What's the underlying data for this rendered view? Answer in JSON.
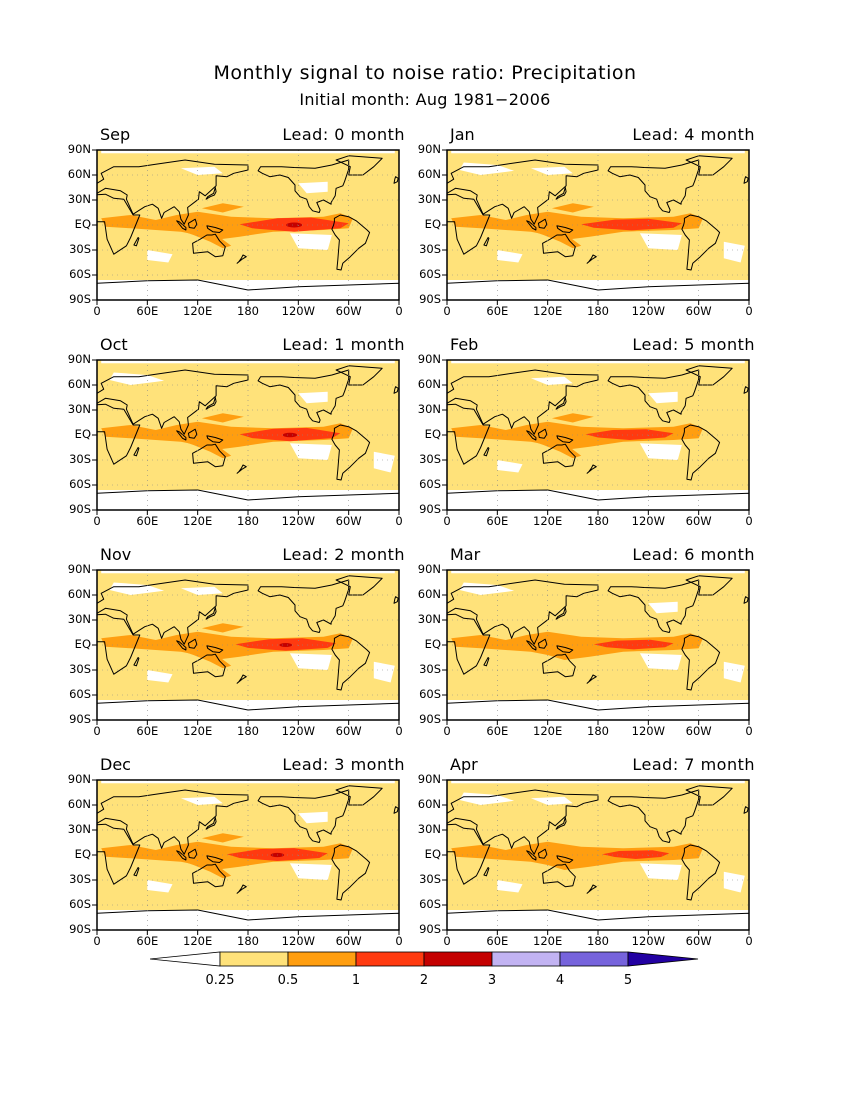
{
  "title": "Monthly signal to noise ratio: Precipitation",
  "subtitle": "Initial month: Aug 1981−2006",
  "lat_ticks": [
    "90N",
    "60N",
    "30N",
    "EQ",
    "30S",
    "60S",
    "90S"
  ],
  "lon_ticks": [
    "0",
    "60E",
    "120E",
    "180",
    "120W",
    "60W",
    "0"
  ],
  "panels": [
    {
      "month": "Sep",
      "lead": "Lead: 0 month",
      "core_strength": 1.0,
      "core_lon": [
        170,
        300
      ]
    },
    {
      "month": "Jan",
      "lead": "Lead: 4 month",
      "core_strength": 0.7,
      "core_lon": [
        160,
        280
      ]
    },
    {
      "month": "Oct",
      "lead": "Lead: 1 month",
      "core_strength": 0.9,
      "core_lon": [
        170,
        290
      ]
    },
    {
      "month": "Feb",
      "lead": "Lead: 5 month",
      "core_strength": 0.6,
      "core_lon": [
        165,
        270
      ]
    },
    {
      "month": "Nov",
      "lead": "Lead: 2 month",
      "core_strength": 0.8,
      "core_lon": [
        165,
        285
      ]
    },
    {
      "month": "Mar",
      "lead": "Lead: 6 month",
      "core_strength": 0.45,
      "core_lon": [
        175,
        270
      ]
    },
    {
      "month": "Dec",
      "lead": "Lead: 3 month",
      "core_strength": 0.85,
      "core_lon": [
        155,
        275
      ]
    },
    {
      "month": "Apr",
      "lead": "Lead: 7 month",
      "core_strength": 0.35,
      "core_lon": [
        185,
        265
      ]
    }
  ],
  "colorbar": {
    "labels": [
      "0.25",
      "0.5",
      "1",
      "2",
      "3",
      "4",
      "5"
    ],
    "colors": [
      "#ffffff",
      "#ffe27a",
      "#ff9e10",
      "#ff3a10",
      "#c40000",
      "#c2b3f2",
      "#7663dc",
      "#2200a2"
    ]
  }
}
